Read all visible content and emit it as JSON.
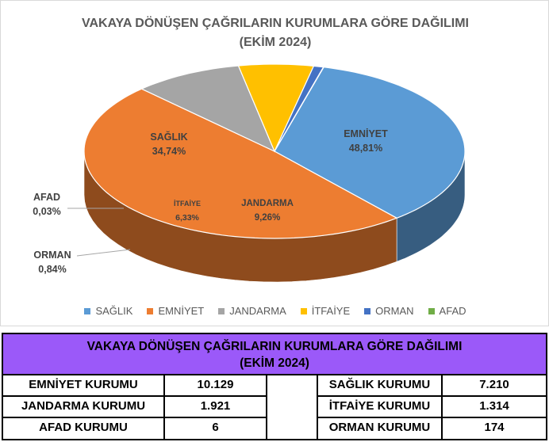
{
  "chart_data": {
    "type": "pie",
    "title": "VAKAYA DÖNÜŞEN ÇAĞRILARIN KURUMLARA GÖRE DAĞILIMI",
    "subtitle": "(EKİM 2024)",
    "slices": [
      {
        "name": "SAĞLIK",
        "label_name": "SAĞLIK",
        "value": 34.74,
        "label": "34,74%",
        "color": "#5b9bd5"
      },
      {
        "name": "EMNİYET",
        "label_name": "EMNİYET",
        "value": 48.81,
        "label": "48,81%",
        "color": "#ed7d31"
      },
      {
        "name": "JANDARMA",
        "label_name": "JANDARMA",
        "value": 9.26,
        "label": "9,26%",
        "color": "#a5a5a5"
      },
      {
        "name": "İTFAİYE",
        "label_name": "İTFAİYE",
        "value": 6.33,
        "label": "6,33%",
        "color": "#ffc000"
      },
      {
        "name": "ORMAN",
        "label_name": "ORMAN",
        "value": 0.84,
        "label": "0,84%",
        "color": "#4472c4"
      },
      {
        "name": "AFAD",
        "label_name": "AFAD",
        "value": 0.03,
        "label": "0,03%",
        "color": "#70ad47"
      }
    ],
    "legend_position": "bottom"
  },
  "table": {
    "title": "VAKAYA DÖNÜŞEN ÇAĞRILARIN KURUMLARA GÖRE DAĞILIMI",
    "subtitle": "(EKİM 2024)",
    "left_rows": [
      {
        "name": "EMNİYET KURUMU",
        "value": "10.129"
      },
      {
        "name": "JANDARMA KURUMU",
        "value": "1.921"
      },
      {
        "name": "AFAD KURUMU",
        "value": "6"
      }
    ],
    "right_rows": [
      {
        "name": "SAĞLIK KURUMU",
        "value": "7.210"
      },
      {
        "name": "İTFAİYE KURUMU",
        "value": "1.314"
      },
      {
        "name": "ORMAN KURUMU",
        "value": "174"
      }
    ]
  }
}
